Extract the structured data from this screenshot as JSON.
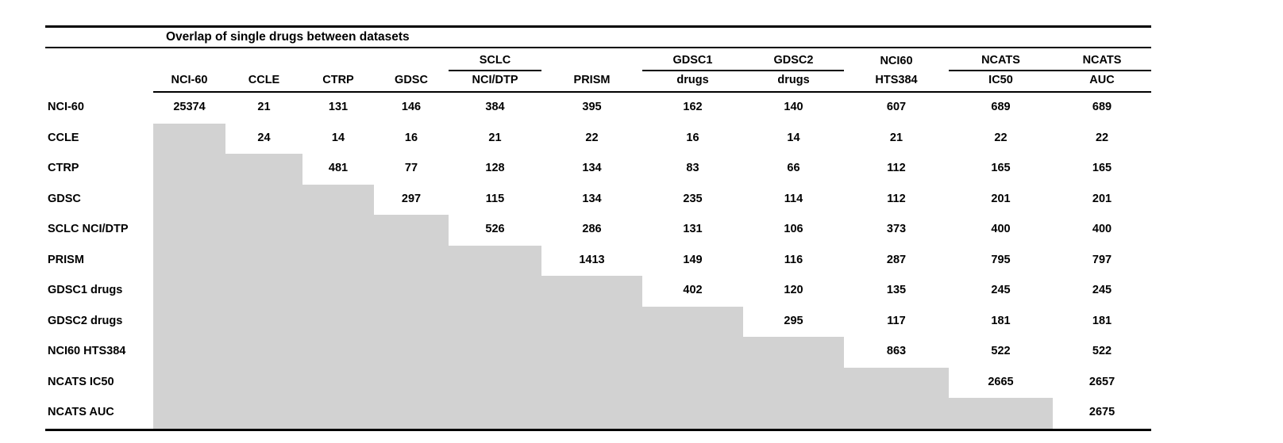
{
  "title": "Overlap of single drugs between datasets",
  "shade_color": "#d2d2d2",
  "columns": [
    {
      "top": "",
      "bottom": "NCI-60",
      "group": null
    },
    {
      "top": "",
      "bottom": "CCLE",
      "group": null
    },
    {
      "top": "",
      "bottom": "CTRP",
      "group": null
    },
    {
      "top": "",
      "bottom": "GDSC",
      "group": null
    },
    {
      "top": "SCLC",
      "bottom": "NCI/DTP",
      "group": "sclc"
    },
    {
      "top": "",
      "bottom": "PRISM",
      "group": null
    },
    {
      "top": "GDSC1",
      "bottom": "drugs",
      "group": "gdsc"
    },
    {
      "top": "GDSC2",
      "bottom": "drugs",
      "group": "gdsc"
    },
    {
      "top": "NCI60",
      "bottom": "HTS384",
      "group": null
    },
    {
      "top": "NCATS",
      "bottom": "IC50",
      "group": "ncats"
    },
    {
      "top": "NCATS",
      "bottom": "AUC",
      "group": "ncats"
    }
  ],
  "rows": [
    {
      "label": "NCI-60",
      "values": [
        25374,
        21,
        131,
        146,
        384,
        395,
        162,
        140,
        607,
        689,
        689
      ]
    },
    {
      "label": "CCLE",
      "values": [
        null,
        24,
        14,
        16,
        21,
        22,
        16,
        14,
        21,
        22,
        22
      ]
    },
    {
      "label": "CTRP",
      "values": [
        null,
        null,
        481,
        77,
        128,
        134,
        83,
        66,
        112,
        165,
        165
      ]
    },
    {
      "label": "GDSC",
      "values": [
        null,
        null,
        null,
        297,
        115,
        134,
        235,
        114,
        112,
        201,
        201
      ]
    },
    {
      "label": "SCLC NCI/DTP",
      "values": [
        null,
        null,
        null,
        null,
        526,
        286,
        131,
        106,
        373,
        400,
        400
      ]
    },
    {
      "label": "PRISM",
      "values": [
        null,
        null,
        null,
        null,
        null,
        1413,
        149,
        116,
        287,
        795,
        797
      ]
    },
    {
      "label": "GDSC1 drugs",
      "values": [
        null,
        null,
        null,
        null,
        null,
        null,
        402,
        120,
        135,
        245,
        245
      ]
    },
    {
      "label": "GDSC2 drugs",
      "values": [
        null,
        null,
        null,
        null,
        null,
        null,
        null,
        295,
        117,
        181,
        181
      ]
    },
    {
      "label": "NCI60 HTS384",
      "values": [
        null,
        null,
        null,
        null,
        null,
        null,
        null,
        null,
        863,
        522,
        522
      ]
    },
    {
      "label": "NCATS IC50",
      "values": [
        null,
        null,
        null,
        null,
        null,
        null,
        null,
        null,
        null,
        2665,
        2657
      ]
    },
    {
      "label": "NCATS AUC",
      "values": [
        null,
        null,
        null,
        null,
        null,
        null,
        null,
        null,
        null,
        null,
        2675
      ]
    }
  ]
}
